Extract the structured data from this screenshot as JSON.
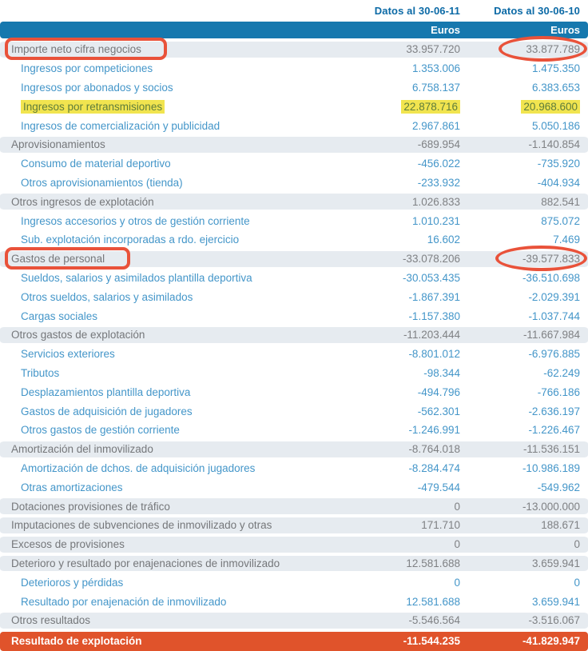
{
  "header": {
    "col1": "Datos al 30-06-11",
    "col2": "Datos al 30-06-10",
    "unit1": "Euros",
    "unit2": "Euros"
  },
  "colors": {
    "header_text": "#0c6aa6",
    "euros_bar": "#1678ae",
    "section_background": "#e6ebf0",
    "detail_text": "#4496c9",
    "section_text": "#75777a",
    "total_bar": "#e0532b",
    "annotation_red": "#e9523a",
    "highlight_yellow": "#f1e44f"
  },
  "rows": [
    {
      "label": "Importe neto cifra negocios",
      "v1": "33.957.720",
      "v2": "33.877.789",
      "type": "section",
      "box": true,
      "ellipse": true
    },
    {
      "label": "Ingresos por competiciones",
      "v1": "1.353.006",
      "v2": "1.475.350",
      "type": "detail"
    },
    {
      "label": "Ingresos por abonados y socios",
      "v1": "6.758.137",
      "v2": "6.383.653",
      "type": "detail"
    },
    {
      "label": "Ingresos por retransmisiones",
      "v1": "22.878.716",
      "v2": "20.968.600",
      "type": "detail",
      "highlight": true
    },
    {
      "label": "Ingresos de comercialización y publicidad",
      "v1": "2.967.861",
      "v2": "5.050.186",
      "type": "detail"
    },
    {
      "label": "Aprovisionamientos",
      "v1": "-689.954",
      "v2": "-1.140.854",
      "type": "section"
    },
    {
      "label": "Consumo de material deportivo",
      "v1": "-456.022",
      "v2": "-735.920",
      "type": "detail"
    },
    {
      "label": "Otros aprovisionamientos (tienda)",
      "v1": "-233.932",
      "v2": "-404.934",
      "type": "detail"
    },
    {
      "label": "Otros ingresos de explotación",
      "v1": "1.026.833",
      "v2": "882.541",
      "type": "section"
    },
    {
      "label": "Ingresos accesorios y otros de gestión corriente",
      "v1": "1.010.231",
      "v2": "875.072",
      "type": "detail"
    },
    {
      "label": "Sub. explotación incorporadas a rdo. ejercicio",
      "v1": "16.602",
      "v2": "7.469",
      "type": "detail"
    },
    {
      "label": "Gastos de personal",
      "v1": "-33.078.206",
      "v2": "-39.577.833",
      "type": "section",
      "box": true,
      "ellipse": true
    },
    {
      "label": "Sueldos, salarios y asimilados plantilla deportiva",
      "v1": "-30.053.435",
      "v2": "-36.510.698",
      "type": "detail"
    },
    {
      "label": "Otros sueldos, salarios y asimilados",
      "v1": "-1.867.391",
      "v2": "-2.029.391",
      "type": "detail"
    },
    {
      "label": "Cargas sociales",
      "v1": "-1.157.380",
      "v2": "-1.037.744",
      "type": "detail"
    },
    {
      "label": "Otros gastos de explotación",
      "v1": "-11.203.444",
      "v2": "-11.667.984",
      "type": "section"
    },
    {
      "label": "Servicios exteriores",
      "v1": "-8.801.012",
      "v2": "-6.976.885",
      "type": "detail"
    },
    {
      "label": "Tributos",
      "v1": "-98.344",
      "v2": "-62.249",
      "type": "detail"
    },
    {
      "label": "Desplazamientos plantilla deportiva",
      "v1": "-494.796",
      "v2": "-766.186",
      "type": "detail"
    },
    {
      "label": "Gastos de adquisición de jugadores",
      "v1": "-562.301",
      "v2": "-2.636.197",
      "type": "detail"
    },
    {
      "label": "Otros gastos de gestión corriente",
      "v1": "-1.246.991",
      "v2": "-1.226.467",
      "type": "detail"
    },
    {
      "label": "Amortización del inmovilizado",
      "v1": "-8.764.018",
      "v2": "-11.536.151",
      "type": "section"
    },
    {
      "label": "Amortización de dchos. de adquisición jugadores",
      "v1": "-8.284.474",
      "v2": "-10.986.189",
      "type": "detail"
    },
    {
      "label": "Otras amortizaciones",
      "v1": "-479.544",
      "v2": "-549.962",
      "type": "detail"
    },
    {
      "label": "Dotaciones provisiones de tráfico",
      "v1": "0",
      "v2": "-13.000.000",
      "type": "section"
    },
    {
      "label": "Imputaciones de subvenciones de inmovilizado y otras",
      "v1": "171.710",
      "v2": "188.671",
      "type": "section"
    },
    {
      "label": "Excesos de provisiones",
      "v1": "0",
      "v2": "0",
      "type": "section"
    },
    {
      "label": "Deterioro y resultado por enajenaciones de inmovilizado",
      "v1": "12.581.688",
      "v2": "3.659.941",
      "type": "section"
    },
    {
      "label": "Deterioros y pérdidas",
      "v1": "0",
      "v2": "0",
      "type": "detail"
    },
    {
      "label": "Resultado por enajenación de inmovilizado",
      "v1": "12.581.688",
      "v2": "3.659.941",
      "type": "detail"
    },
    {
      "label": "Otros resultados",
      "v1": "-5.546.564",
      "v2": "-3.516.067",
      "type": "section"
    },
    {
      "label": "Resultado de explotación",
      "v1": "-11.544.235",
      "v2": "-41.829.947",
      "type": "total"
    }
  ]
}
